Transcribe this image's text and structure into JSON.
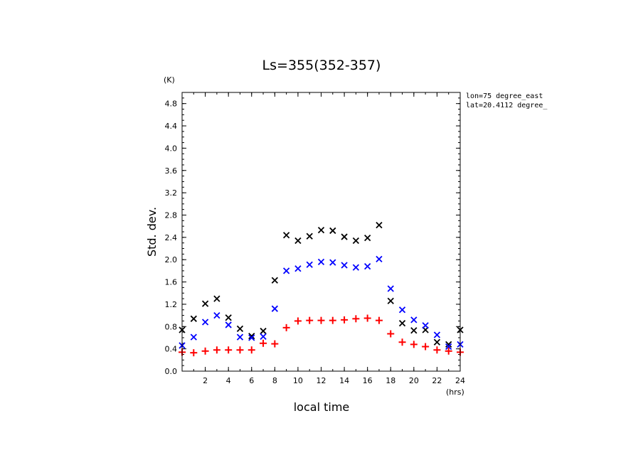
{
  "chart_data": {
    "type": "scatter",
    "title": "Ls=355(352-357)",
    "xlabel": "local time",
    "ylabel": "Std. dev.",
    "x_unit": "(hrs)",
    "y_unit": "(K)",
    "xlim": [
      0,
      24
    ],
    "ylim": [
      0,
      5.0
    ],
    "x_ticks": [
      2,
      4,
      6,
      8,
      10,
      12,
      14,
      16,
      18,
      20,
      22,
      24
    ],
    "y_ticks": [
      "0.0",
      "0.4",
      "0.8",
      "1.2",
      "1.6",
      "2.0",
      "2.4",
      "2.8",
      "3.2",
      "3.6",
      "4.0",
      "4.4",
      "4.8"
    ],
    "annotations": [
      "lon=75 degree_east",
      "lat=20.4112 degree_"
    ],
    "grid": false,
    "series": [
      {
        "marker": "x",
        "color": "#000000",
        "x": [
          0,
          1,
          2,
          3,
          4,
          5,
          6,
          7,
          8,
          9,
          10,
          11,
          12,
          13,
          14,
          15,
          16,
          17,
          18,
          19,
          20,
          21,
          22,
          23,
          24
        ],
        "values": [
          0.74,
          0.94,
          1.21,
          1.3,
          0.96,
          0.76,
          0.63,
          0.72,
          1.63,
          2.44,
          2.34,
          2.42,
          2.53,
          2.52,
          2.41,
          2.34,
          2.39,
          2.62,
          1.26,
          0.86,
          0.73,
          0.74,
          0.52,
          0.48,
          0.74
        ]
      },
      {
        "marker": "x",
        "color": "#0000ff",
        "x": [
          0,
          1,
          2,
          3,
          4,
          5,
          6,
          7,
          8,
          9,
          10,
          11,
          12,
          13,
          14,
          15,
          16,
          17,
          18,
          19,
          20,
          21,
          22,
          23,
          24
        ],
        "values": [
          0.46,
          0.61,
          0.88,
          1.0,
          0.83,
          0.61,
          0.6,
          0.62,
          1.12,
          1.8,
          1.84,
          1.91,
          1.96,
          1.95,
          1.9,
          1.86,
          1.88,
          2.01,
          1.48,
          1.1,
          0.92,
          0.82,
          0.65,
          0.44,
          0.48
        ]
      },
      {
        "marker": "+",
        "color": "#ff0000",
        "x": [
          0,
          1,
          2,
          3,
          4,
          5,
          6,
          7,
          8,
          9,
          10,
          11,
          12,
          13,
          14,
          15,
          16,
          17,
          18,
          19,
          20,
          21,
          22,
          23,
          24
        ],
        "values": [
          0.34,
          0.33,
          0.36,
          0.38,
          0.38,
          0.38,
          0.38,
          0.5,
          0.49,
          0.78,
          0.9,
          0.91,
          0.91,
          0.91,
          0.92,
          0.94,
          0.95,
          0.91,
          0.67,
          0.52,
          0.48,
          0.44,
          0.38,
          0.36,
          0.34
        ]
      }
    ]
  }
}
